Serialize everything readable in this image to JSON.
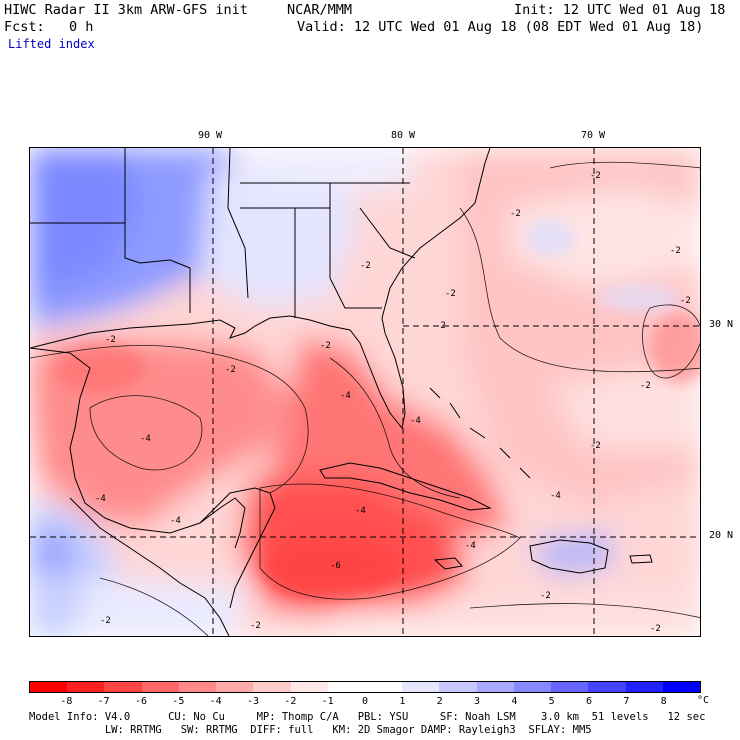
{
  "header": {
    "title": "HIWC Radar II 3km ARW-GFS init",
    "org": "NCAR/MMM",
    "init": "Init: 12 UTC Wed 01 Aug 18",
    "fcst": "Fcst:   0 h",
    "valid": "Valid: 12 UTC Wed 01 Aug 18 (08 EDT Wed 01 Aug 18)",
    "field": "Lifted index"
  },
  "map": {
    "lon_labels": [
      "90 W",
      "80 W",
      "70 W"
    ],
    "lat_labels": [
      "30 N",
      "20 N"
    ],
    "contour_labels": [
      "-2",
      "-2",
      "-2",
      "-2",
      "-2",
      "-2",
      "-2",
      "-2",
      "-4",
      "-4",
      "-4",
      "-4",
      "-4",
      "-4",
      "-6",
      "-2",
      "-2",
      "-2",
      "-2",
      "-2",
      "-2",
      "-4",
      "-4",
      "-2",
      "-2"
    ]
  },
  "colorbar": {
    "colors": [
      "#ff0000",
      "#ff2020",
      "#ff4444",
      "#ff6666",
      "#ff8a8a",
      "#ffabab",
      "#ffcccc",
      "#ffe8e8",
      "#ffffff",
      "#ffffff",
      "#e6e6ff",
      "#c8c8ff",
      "#a8a8ff",
      "#8888ff",
      "#6666ff",
      "#4444ff",
      "#2222ff",
      "#0000ff"
    ],
    "ticks": [
      "-8",
      "-7",
      "-6",
      "-5",
      "-4",
      "-3",
      "-2",
      "-1",
      "0",
      "1",
      "2",
      "3",
      "4",
      "5",
      "6",
      "7",
      "8"
    ],
    "unit": "°C"
  },
  "model_info": {
    "line1": "Model Info: V4.0      CU: No Cu     MP: Thomp C/A   PBL: YSU     SF: Noah LSM    3.0 km  51 levels   12 sec",
    "line2": "            LW: RRTMG   SW: RRTMG  DIFF: full   KM: 2D Smagor DAMP: Rayleigh3  SFLAY: MM5"
  }
}
